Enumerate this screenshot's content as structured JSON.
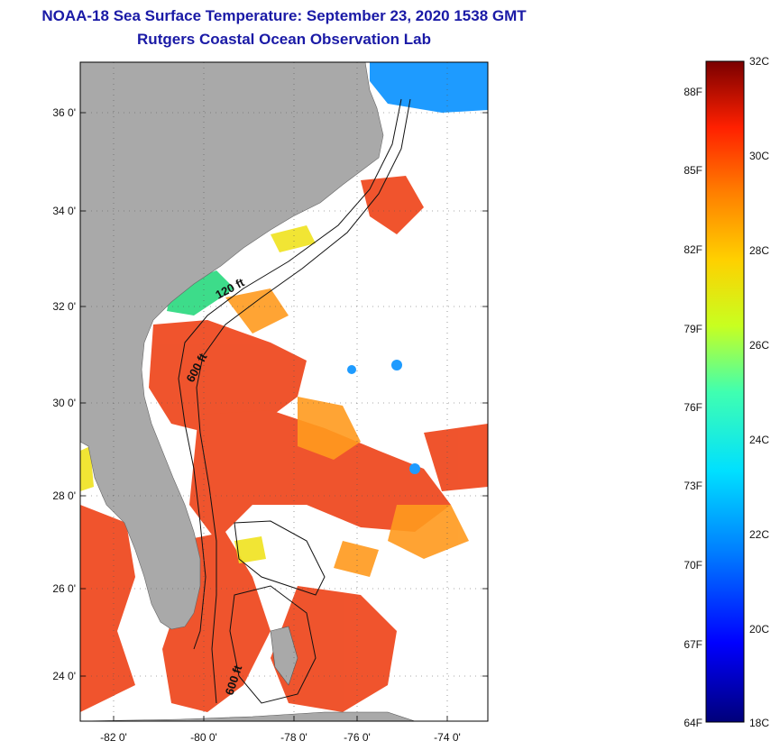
{
  "header": {
    "title": "NOAA-18 Sea Surface Temperature:  September 23, 2020 1538 GMT",
    "subtitle": "Rutgers Coastal Ocean Observation Lab"
  },
  "axes": {
    "lat_labels": [
      "36 0'",
      "34 0'",
      "32 0'",
      "30 0'",
      "28 0'",
      "26 0'",
      "24 0'"
    ],
    "lon_labels": [
      "-82 0'",
      "-80 0'",
      "-78 0'",
      "-76 0'",
      "-74 0'"
    ]
  },
  "isobaths": [
    "120 ft",
    "600 ft",
    "600 ft"
  ],
  "colorbar": {
    "fahrenheit_labels": [
      "88F",
      "85F",
      "82F",
      "79F",
      "76F",
      "73F",
      "70F",
      "67F",
      "64F"
    ],
    "celsius_labels": [
      "32C",
      "30C",
      "28C",
      "26C",
      "24C",
      "22C",
      "20C",
      "18C"
    ],
    "min_c": 18,
    "max_c": 32
  },
  "colors": {
    "land": "#a9a9a9",
    "title": "#1a1aa6",
    "warm": "#ee4a1e",
    "cool": "#1e90ff"
  }
}
